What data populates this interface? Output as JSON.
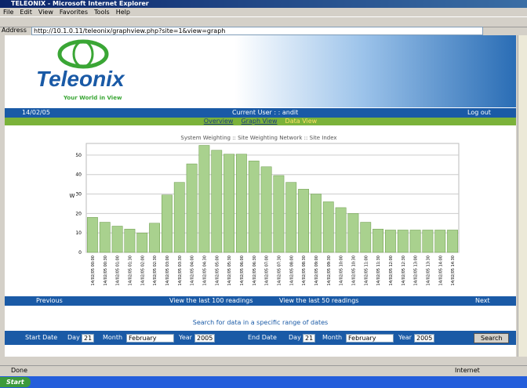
{
  "browser": {
    "title": "TELEONIX - Microsoft Internet Explorer",
    "menu": [
      "File",
      "Edit",
      "View",
      "Favorites",
      "Tools",
      "Help"
    ],
    "address_label": "Address",
    "address": "http://10.1.0.11/teleonix/graphview.php?site=1&view=graph",
    "status": "Done",
    "zone": "Internet",
    "start": "Start"
  },
  "header": {
    "logo": "Teleonix",
    "tagline": "Your World in View",
    "date": "14/02/05",
    "user": "Current User : : andit",
    "logout": "Log out"
  },
  "nav": [
    "Overview",
    "Graph View",
    "Data View"
  ],
  "chart_data": {
    "type": "bar",
    "title": "System Weighting :: Site Weighting Network :: Site Index",
    "y_label": "W",
    "categories": [
      "14/02/05 00:00",
      "14/02/05 00:30",
      "14/02/05 01:00",
      "14/02/05 01:30",
      "14/02/05 02:00",
      "14/02/05 02:30",
      "14/02/05 03:00",
      "14/02/05 03:30",
      "14/02/05 04:00",
      "14/02/05 04:30",
      "14/02/05 05:00",
      "14/02/05 05:30",
      "14/02/05 06:00",
      "14/02/05 06:30",
      "14/02/05 07:00",
      "14/02/05 07:30",
      "14/02/05 08:00",
      "14/02/05 08:30",
      "14/02/05 09:00",
      "14/02/05 09:30",
      "14/02/05 10:00",
      "14/02/05 10:30",
      "14/02/05 11:00",
      "14/02/05 11:30",
      "14/02/05 12:00",
      "14/02/05 12:30",
      "14/02/05 13:00",
      "14/02/05 13:30",
      "14/02/05 14:00",
      "14/02/05 14:30"
    ],
    "values": [
      18,
      15.5,
      13.5,
      12,
      10,
      15,
      29.5,
      36,
      45.5,
      55,
      52.5,
      50.5,
      50.5,
      47,
      44,
      39.5,
      36,
      32.5,
      30,
      26,
      23,
      20,
      15.5,
      12,
      11.5,
      11.5,
      11.5,
      11.5,
      11.5,
      11.5
    ],
    "color": "#a9d18e",
    "ylim": [
      0,
      56
    ],
    "yticks": [
      0,
      10,
      20,
      30,
      40,
      50
    ],
    "grid": true
  },
  "pager": {
    "previous": "Previous",
    "last100": "View the last 100 readings",
    "last50": "View the last 50 readings",
    "next": "Next"
  },
  "search": {
    "caption": "Search for data in a specific range of dates",
    "start_label": "Start Date",
    "end_label": "End Date",
    "day_label": "Day",
    "month_label": "Month",
    "year_label": "Year",
    "start": {
      "day": "21",
      "month": "February",
      "year": "2005"
    },
    "end": {
      "day": "21",
      "month": "February",
      "year": "2005"
    },
    "button": "Search"
  }
}
